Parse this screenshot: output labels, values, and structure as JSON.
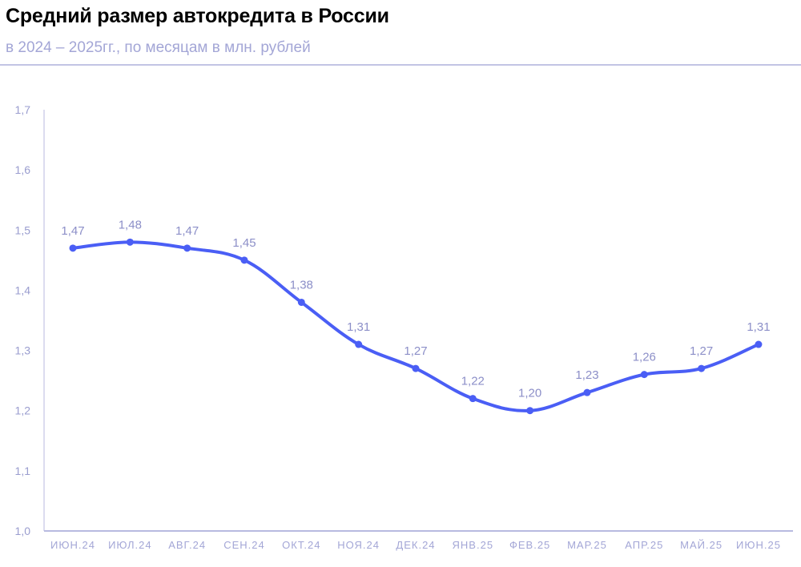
{
  "title": "Средний размер автокредита в России",
  "subtitle": "в 2024 – 2025гг., по месяцам в млн. рублей",
  "colors": {
    "line": "#4a5ef5",
    "labels": "#8c8fc8",
    "axis": "#b8bae0"
  },
  "chart_data": {
    "type": "line",
    "title": "Средний размер автокредита в России",
    "subtitle": "в 2024 – 2025гг., по месяцам в млн. рублей",
    "categories": [
      "ИЮН.24",
      "ИЮЛ.24",
      "АВГ.24",
      "СЕН.24",
      "ОКТ.24",
      "НОЯ.24",
      "ДЕК.24",
      "ЯНВ.25",
      "ФЕВ.25",
      "МАР.25",
      "АПР.25",
      "МАЙ.25",
      "ИЮН.25"
    ],
    "values": [
      1.47,
      1.48,
      1.47,
      1.45,
      1.38,
      1.31,
      1.27,
      1.22,
      1.2,
      1.23,
      1.26,
      1.27,
      1.31
    ],
    "data_labels": [
      "1,47",
      "1,48",
      "1,47",
      "1,45",
      "1,38",
      "1,31",
      "1,27",
      "1,22",
      "1,20",
      "1,23",
      "1,26",
      "1,27",
      "1,31"
    ],
    "yticks": [
      "1,0",
      "1,1",
      "1,2",
      "1,3",
      "1,4",
      "1,5",
      "1,6",
      "1,7"
    ],
    "ylim": [
      1.0,
      1.7
    ],
    "grid": false,
    "smooth": true
  }
}
